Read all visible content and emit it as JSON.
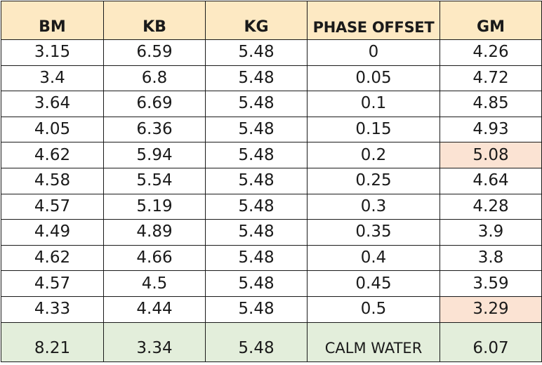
{
  "table": {
    "headers": [
      "BM",
      "KB",
      "KG",
      "PHASE OFFSET",
      "GM"
    ],
    "rows": [
      {
        "bm": "3.15",
        "kb": "6.59",
        "kg": "5.48",
        "phase": "0",
        "gm": "4.26",
        "highlight": false
      },
      {
        "bm": "3.4",
        "kb": "6.8",
        "kg": "5.48",
        "phase": "0.05",
        "gm": "4.72",
        "highlight": false
      },
      {
        "bm": "3.64",
        "kb": "6.69",
        "kg": "5.48",
        "phase": "0.1",
        "gm": "4.85",
        "highlight": false
      },
      {
        "bm": "4.05",
        "kb": "6.36",
        "kg": "5.48",
        "phase": "0.15",
        "gm": "4.93",
        "highlight": false
      },
      {
        "bm": "4.62",
        "kb": "5.94",
        "kg": "5.48",
        "phase": "0.2",
        "gm": "5.08",
        "highlight": true
      },
      {
        "bm": "4.58",
        "kb": "5.54",
        "kg": "5.48",
        "phase": "0.25",
        "gm": "4.64",
        "highlight": false
      },
      {
        "bm": "4.57",
        "kb": "5.19",
        "kg": "5.48",
        "phase": "0.3",
        "gm": "4.28",
        "highlight": false
      },
      {
        "bm": "4.49",
        "kb": "4.89",
        "kg": "5.48",
        "phase": "0.35",
        "gm": "3.9",
        "highlight": false
      },
      {
        "bm": "4.62",
        "kb": "4.66",
        "kg": "5.48",
        "phase": "0.4",
        "gm": "3.8",
        "highlight": false
      },
      {
        "bm": "4.57",
        "kb": "4.5",
        "kg": "5.48",
        "phase": "0.45",
        "gm": "3.59",
        "highlight": false
      },
      {
        "bm": "4.33",
        "kb": "4.44",
        "kg": "5.48",
        "phase": "0.5",
        "gm": "3.29",
        "highlight": true
      }
    ],
    "footer": {
      "bm": "8.21",
      "kb": "3.34",
      "kg": "5.48",
      "phase": "CALM WATER",
      "gm": "6.07"
    }
  },
  "colors": {
    "header_bg": "#fde9c3",
    "highlight_bg": "#fbe3d3",
    "footer_bg": "#e3eedb",
    "border": "#1a1a1a",
    "text": "#1a1a1a"
  }
}
